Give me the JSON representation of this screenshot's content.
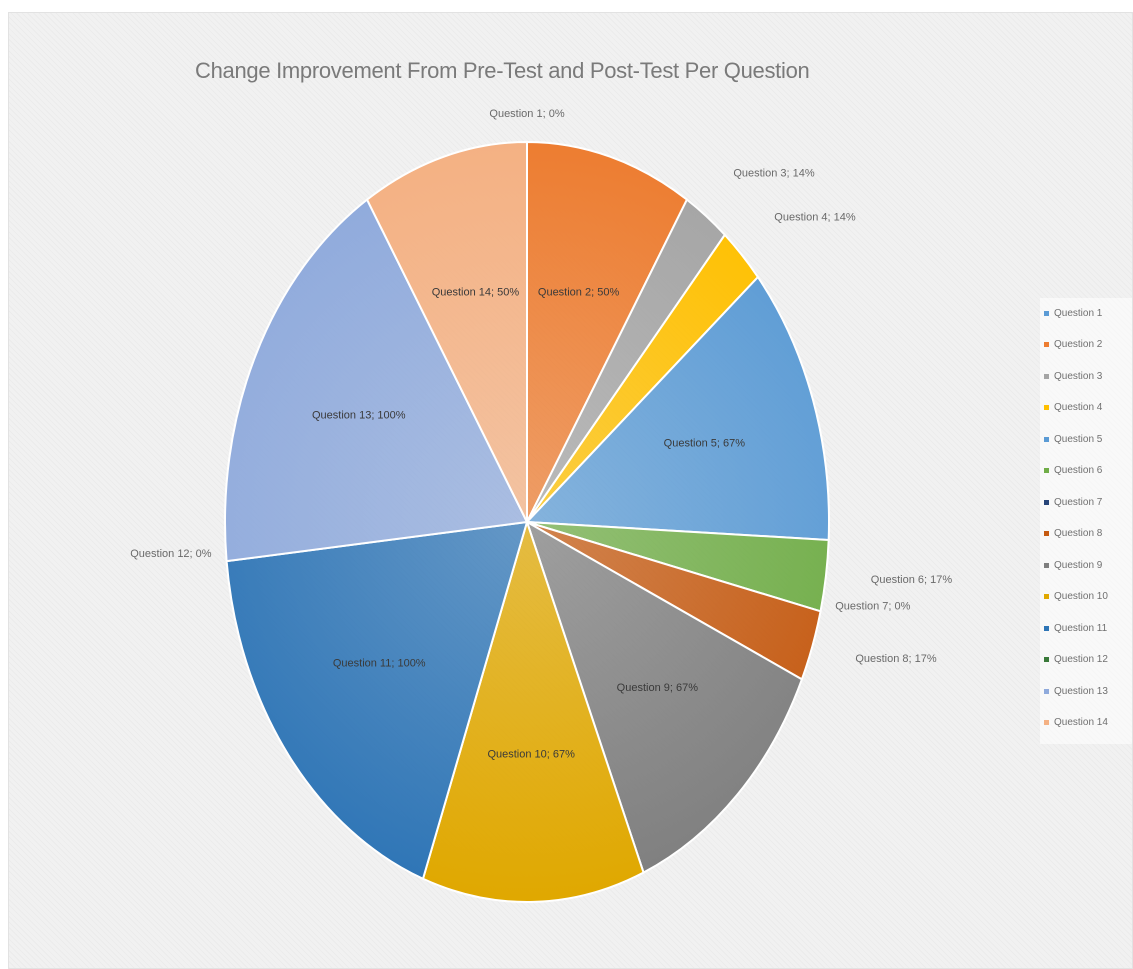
{
  "chart_data": {
    "type": "pie",
    "title": "Change Improvement From Pre-Test and Post-Test Per Question",
    "legend_position": "right",
    "slices": [
      {
        "label": "Question 1",
        "value": 0,
        "data_label": "Question 1; 0%",
        "color": "#5b9bd5"
      },
      {
        "label": "Question 2",
        "value": 50,
        "data_label": "Question 2; 50%",
        "color": "#ed7d31"
      },
      {
        "label": "Question 3",
        "value": 14,
        "data_label": "Question 3; 14%",
        "color": "#a5a5a5"
      },
      {
        "label": "Question 4",
        "value": 14,
        "data_label": "Question 4; 14%",
        "color": "#ffc000"
      },
      {
        "label": "Question 5",
        "value": 67,
        "data_label": "Question 5; 67%",
        "color": "#5b9bd5"
      },
      {
        "label": "Question 6",
        "value": 17,
        "data_label": "Question 6; 17%",
        "color": "#70ad47"
      },
      {
        "label": "Question 7",
        "value": 0,
        "data_label": "Question 7; 0%",
        "color": "#264478"
      },
      {
        "label": "Question 8",
        "value": 17,
        "data_label": "Question 8; 17%",
        "color": "#c55a11"
      },
      {
        "label": "Question 9",
        "value": 67,
        "data_label": "Question 9; 67%",
        "color": "#7f7f7f"
      },
      {
        "label": "Question 10",
        "value": 67,
        "data_label": "Question 10; 67%",
        "color": "#e0a800"
      },
      {
        "label": "Question 11",
        "value": 100,
        "data_label": "Question 11; 100%",
        "color": "#2e75b6"
      },
      {
        "label": "Question 12",
        "value": 0,
        "data_label": "Question 12; 0%",
        "color": "#3a7a3a"
      },
      {
        "label": "Question 13",
        "value": 100,
        "data_label": "Question 13; 100%",
        "color": "#8faadc"
      },
      {
        "label": "Question 14",
        "value": 50,
        "data_label": "Question 14; 50%",
        "color": "#f4b183"
      }
    ],
    "legend": [
      "Question 1",
      "Question 2",
      "Question 3",
      "Question 4",
      "Question 5",
      "Question 6",
      "Question 7",
      "Question 8",
      "Question 9",
      "Question 10",
      "Question 11",
      "Question 12",
      "Question 13",
      "Question 14"
    ]
  }
}
